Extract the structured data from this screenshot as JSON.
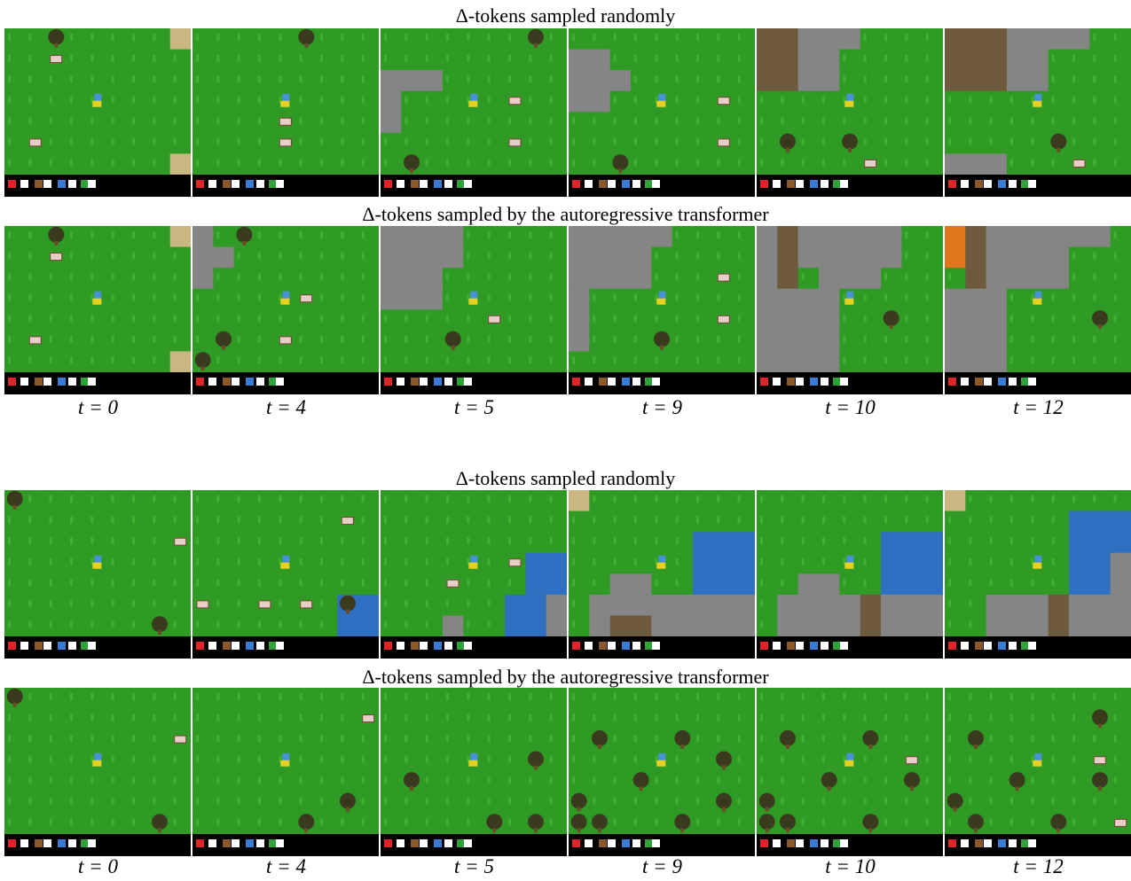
{
  "figure": {
    "blocks": [
      {
        "rows": [
          {
            "title": "Δ-tokens sampled randomly"
          },
          {
            "title": "Δ-tokens sampled by the autoregressive transformer"
          }
        ],
        "time_labels": [
          "t = 0",
          "t = 4",
          "t = 5",
          "t = 9",
          "t = 10",
          "t = 12"
        ]
      },
      {
        "rows": [
          {
            "title": "Δ-tokens sampled randomly"
          },
          {
            "title": "Δ-tokens sampled by the autoregressive transformer"
          }
        ],
        "time_labels": [
          "t = 0",
          "t = 4",
          "t = 5",
          "t = 9",
          "t = 10",
          "t = 12"
        ]
      }
    ]
  }
}
